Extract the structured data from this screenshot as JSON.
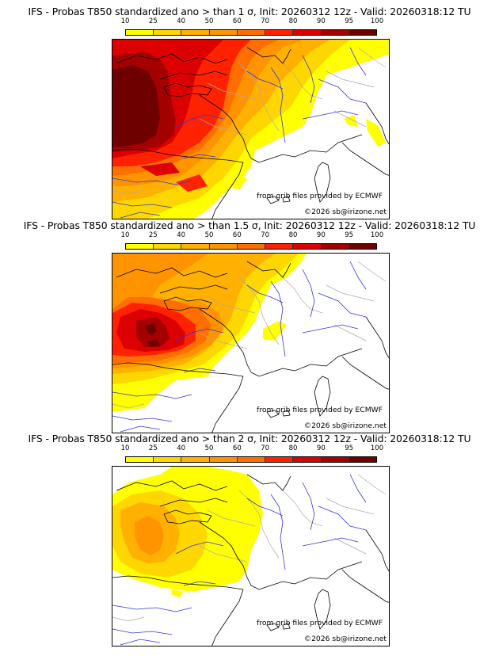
{
  "panels": [
    {
      "title": "IFS - Probas T850  standardized ano > than 1 σ, Init: 20260312 12z - Valid: 20260318:12 TU",
      "threshold_sigma": "1",
      "source_credit": "from grib files provided by ECMWF",
      "copyright": "©2026 sb@irizone.net"
    },
    {
      "title": "IFS - Probas T850  standardized ano > than 1.5 σ, Init: 20260312 12z - Valid: 20260318:12 TU",
      "threshold_sigma": "1.5",
      "source_credit": "from grib files provided by ECMWF",
      "copyright": "©2026 sb@irizone.net"
    },
    {
      "title": "IFS - Probas T850  standardized ano > than 2 σ, Init: 20260312 12z - Valid: 20260318:12 TU",
      "threshold_sigma": "2",
      "source_credit": "from grib files provided by ECMWF",
      "copyright": "©2026 sb@irizone.net"
    }
  ],
  "colorbar": {
    "ticks": [
      "10",
      "25",
      "40",
      "50",
      "60",
      "70",
      "80",
      "90",
      "95",
      "100"
    ],
    "colors": [
      "#ffff00",
      "#ffd700",
      "#ffb000",
      "#ff9400",
      "#ff6e00",
      "#ff2200",
      "#dd0000",
      "#a50000",
      "#6e0000"
    ]
  },
  "map_layers": {
    "region": "Western Europe (France, Iberia, Italy, British Isles)",
    "coastline_color": "#000000",
    "river_color": "#3333dd",
    "admin_border_color": "#aaaaaa"
  }
}
